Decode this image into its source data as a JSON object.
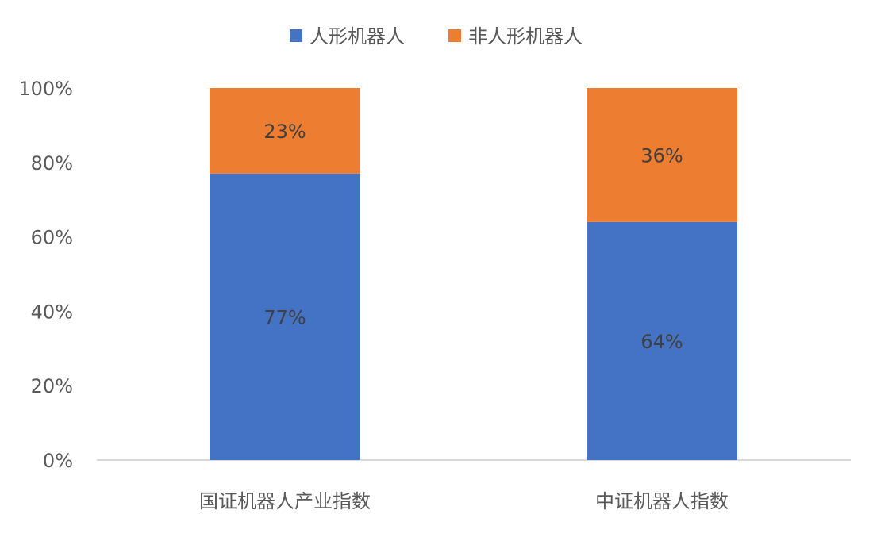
{
  "chart_data": {
    "type": "bar",
    "stacked": true,
    "percent": true,
    "categories": [
      "国证机器人产业指数",
      "中证机器人指数"
    ],
    "series": [
      {
        "name": "人形机器人",
        "values": [
          77,
          64
        ],
        "color": "#4472C4",
        "labels": [
          "77%",
          "64%"
        ]
      },
      {
        "name": "非人形机器人",
        "values": [
          23,
          36
        ],
        "color": "#ED7D31",
        "labels": [
          "23%",
          "36%"
        ]
      }
    ],
    "ylim": [
      0,
      100
    ],
    "yticks": [
      "0%",
      "20%",
      "40%",
      "60%",
      "80%",
      "100%"
    ],
    "legend": "top",
    "grid": false
  }
}
